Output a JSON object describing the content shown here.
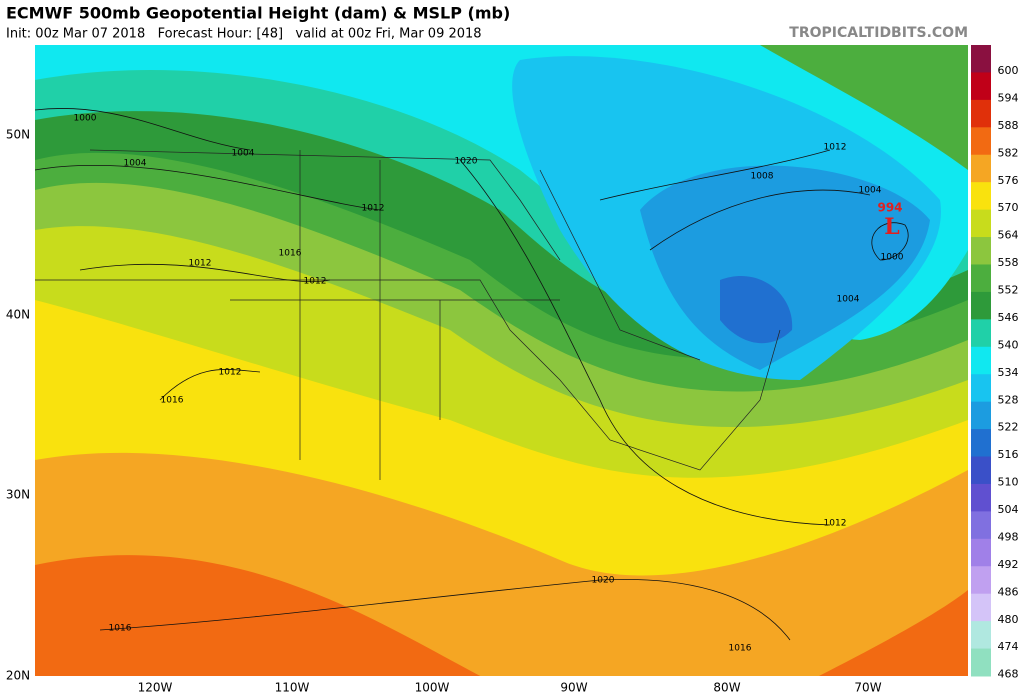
{
  "header": {
    "title": "ECMWF 500mb Geopotential Height (dam) & MSLP (mb)",
    "subtitle": "Init: 00z Mar 07 2018   Forecast Hour: [48]   valid at 00z Fri, Mar 09 2018",
    "source": "TROPICALTIDBITS.COM"
  },
  "map": {
    "lon_labels": [
      "120W",
      "110W",
      "100W",
      "90W",
      "80W",
      "70W"
    ],
    "lat_labels": [
      "50N",
      "40N",
      "30N",
      "20N"
    ],
    "isobar_labels": [
      "1000",
      "1004",
      "1004",
      "1012",
      "1016",
      "1012",
      "1012",
      "1020",
      "1012",
      "1008",
      "1004",
      "1000",
      "1004",
      "1012",
      "1016",
      "1020",
      "1012",
      "1016",
      "1016"
    ],
    "low": {
      "symbol": "L",
      "pressure": "994"
    }
  },
  "colorbar": {
    "levels": [
      600,
      594,
      588,
      582,
      576,
      570,
      564,
      558,
      552,
      546,
      540,
      534,
      528,
      522,
      516,
      510,
      504,
      498,
      492,
      486,
      480,
      474,
      468
    ],
    "colors": [
      "#8a1040",
      "#c00018",
      "#e0300a",
      "#f26a12",
      "#f5a623",
      "#f9e20e",
      "#c8dc1c",
      "#8cc63e",
      "#4cae3e",
      "#2e9a3a",
      "#20d0a8",
      "#10e8f0",
      "#18c4f0",
      "#1c9ce0",
      "#2070d0",
      "#3a50c8",
      "#6050d0",
      "#8070e0",
      "#a080e8",
      "#c0a0f0",
      "#d4c4f8",
      "#b0e8e0",
      "#90e0c0"
    ]
  }
}
